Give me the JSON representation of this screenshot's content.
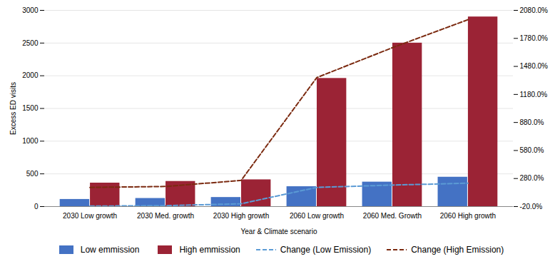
{
  "chart_data": {
    "type": "bar",
    "xlabel": "Year & Climate scenario",
    "ylabel": "Excess ED visits",
    "categories": [
      "2030 Low growth",
      "2030 Med. growth",
      "2030 High growth",
      "2060 Low growth",
      "2060 Med. Growth",
      "2060 High growth"
    ],
    "series": [
      {
        "name": "Low emmission",
        "type": "bar",
        "color": "#4472C4",
        "values": [
          110,
          125,
          140,
          305,
          375,
          450
        ]
      },
      {
        "name": "High emmission",
        "type": "bar",
        "color": "#9B2335",
        "values": [
          360,
          385,
          410,
          1960,
          2500,
          2900
        ]
      },
      {
        "name": "Change (Low Emission)",
        "type": "line",
        "color": "#5B9BD5",
        "line_style": "dashed",
        "axis": "y2",
        "values": [
          -15,
          -10,
          10,
          185,
          210,
          230
        ]
      },
      {
        "name": "Change (High Emission)",
        "type": "line",
        "color": "#7B2A10",
        "line_style": "dashed",
        "axis": "y2",
        "values": [
          185,
          195,
          260,
          1360,
          1680,
          1980
        ]
      }
    ],
    "ylim": [
      0,
      3000
    ],
    "yticks": [
      0,
      500,
      1000,
      1500,
      2000,
      2500,
      3000
    ],
    "y2lim": [
      -20,
      2080
    ],
    "y2ticks": [
      {
        "value": -20,
        "label": "-20.0%"
      },
      {
        "value": 280,
        "label": "280.0%"
      },
      {
        "value": 580,
        "label": "580.0%"
      },
      {
        "value": 880,
        "label": "880.0%"
      },
      {
        "value": 1180,
        "label": "1180.0%"
      },
      {
        "value": 1480,
        "label": "1480.0%"
      },
      {
        "value": 1780,
        "label": "1780.0%"
      },
      {
        "value": 2080,
        "label": "2080.0%"
      }
    ],
    "grid": true,
    "legend": "bottom"
  }
}
